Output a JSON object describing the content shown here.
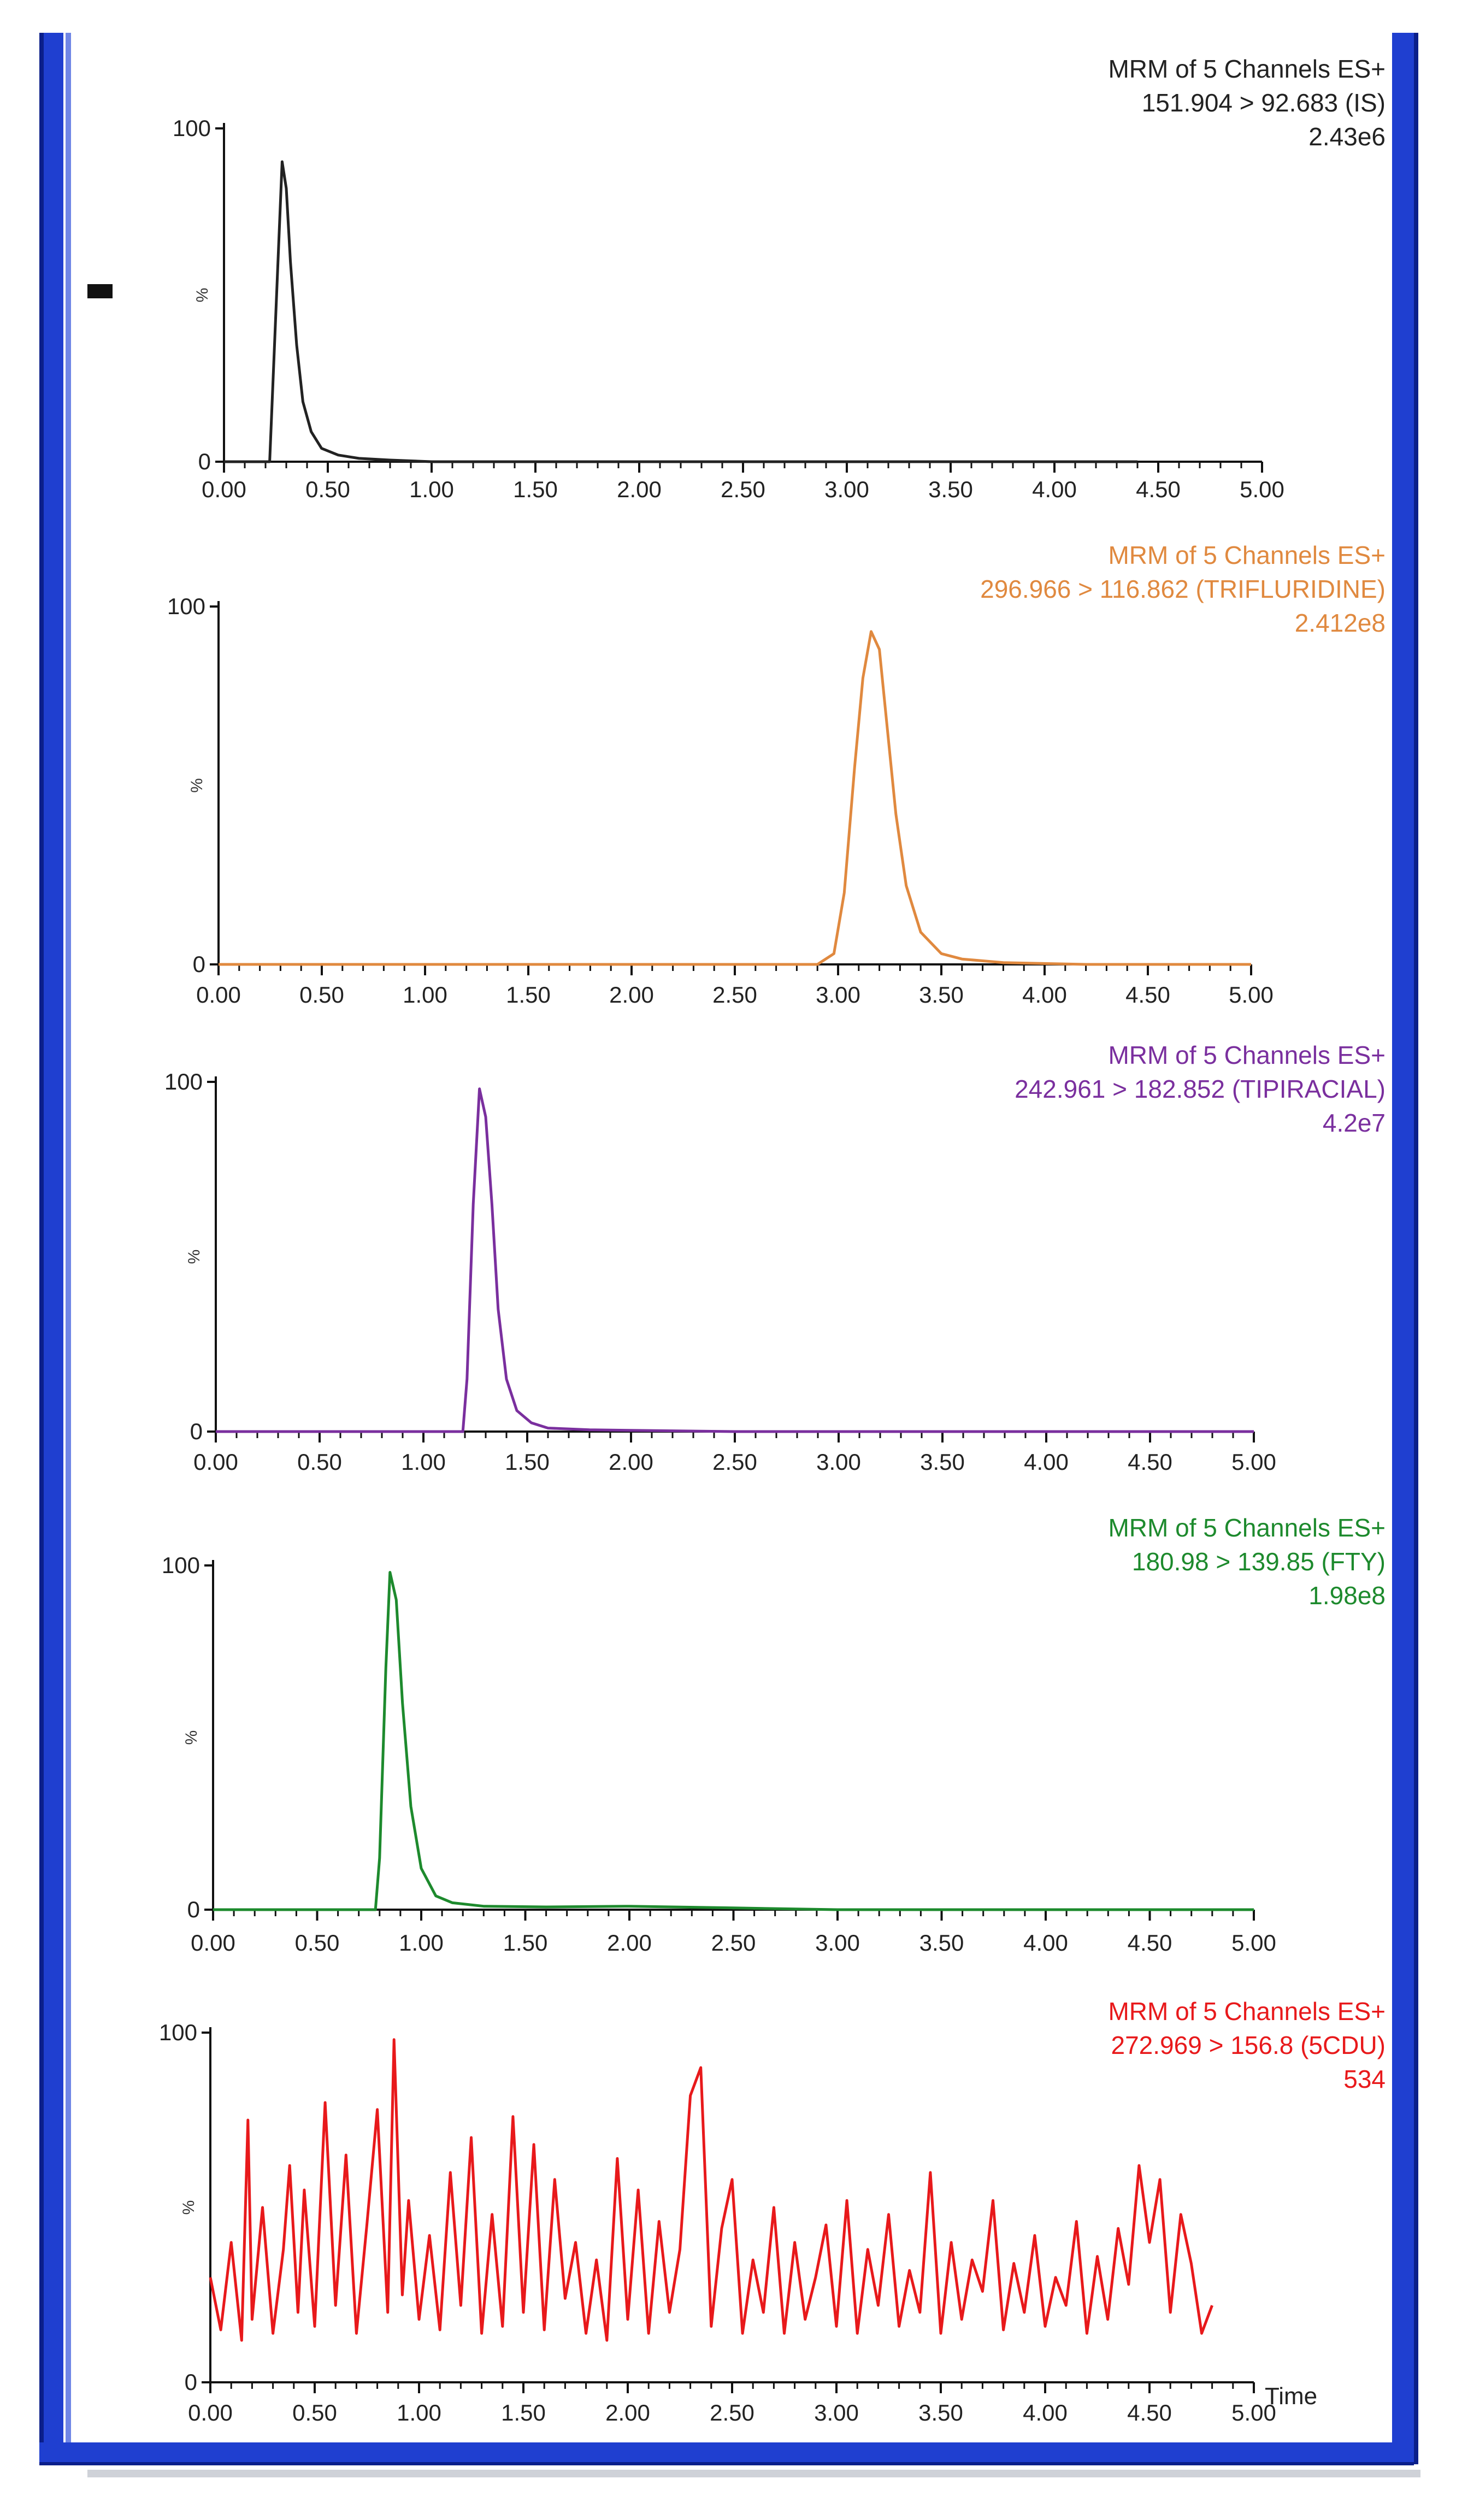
{
  "chart_data": [
    {
      "type": "line",
      "title_lines": [
        "MRM of 5 Channels ES+",
        "151.904 > 92.683 (IS)",
        "2.43e6"
      ],
      "color": "#222222",
      "xlabel": "",
      "ylabel": "%",
      "ylim": [
        0,
        100
      ],
      "xlim": [
        0,
        5
      ],
      "x_ticks": [
        "0.00",
        "0.50",
        "1.00",
        "1.50",
        "2.00",
        "2.50",
        "3.00",
        "3.50",
        "4.00",
        "4.50",
        "5.00"
      ],
      "y_ticks": [
        "0",
        "100"
      ],
      "trace_end": 4.4,
      "series": [
        {
          "x": [
            0.0,
            0.2,
            0.22,
            0.25,
            0.28,
            0.3,
            0.32,
            0.35,
            0.38,
            0.42,
            0.47,
            0.55,
            0.65,
            0.8,
            1.0,
            1.5,
            2.5,
            3.5,
            4.4
          ],
          "y": [
            0,
            0,
            0,
            45,
            90,
            82,
            60,
            35,
            18,
            9,
            4,
            2,
            1,
            0.5,
            0,
            0,
            0,
            0,
            0
          ]
        }
      ]
    },
    {
      "type": "line",
      "title_lines": [
        "MRM of 5 Channels ES+",
        "296.966 > 116.862 (TRIFLURIDINE)",
        "2.412e8"
      ],
      "color": "#e0893f",
      "xlabel": "",
      "ylabel": "%",
      "ylim": [
        0,
        100
      ],
      "xlim": [
        0,
        5
      ],
      "x_ticks": [
        "0.00",
        "0.50",
        "1.00",
        "1.50",
        "2.00",
        "2.50",
        "3.00",
        "3.50",
        "4.00",
        "4.50",
        "5.00"
      ],
      "y_ticks": [
        "0",
        "100"
      ],
      "series": [
        {
          "x": [
            0.0,
            1.0,
            2.0,
            2.9,
            2.98,
            3.03,
            3.08,
            3.12,
            3.16,
            3.2,
            3.24,
            3.28,
            3.33,
            3.4,
            3.5,
            3.6,
            3.8,
            4.2,
            5.0
          ],
          "y": [
            0,
            0,
            0,
            0,
            3,
            20,
            55,
            80,
            93,
            88,
            65,
            42,
            22,
            9,
            3,
            1.5,
            0.5,
            0,
            0
          ]
        }
      ]
    },
    {
      "type": "line",
      "title_lines": [
        "MRM of 5 Channels ES+",
        "242.961 > 182.852 (TIPIRACIAL)",
        "4.2e7"
      ],
      "color": "#7a2f9e",
      "xlabel": "",
      "ylabel": "%",
      "ylim": [
        0,
        100
      ],
      "xlim": [
        0,
        5
      ],
      "x_ticks": [
        "0.00",
        "0.50",
        "1.00",
        "1.50",
        "2.00",
        "2.50",
        "3.00",
        "3.50",
        "4.00",
        "4.50",
        "5.00"
      ],
      "y_ticks": [
        "0",
        "100"
      ],
      "series": [
        {
          "x": [
            0.0,
            1.0,
            1.19,
            1.21,
            1.24,
            1.27,
            1.3,
            1.33,
            1.36,
            1.4,
            1.45,
            1.52,
            1.6,
            1.8,
            2.5,
            5.0
          ],
          "y": [
            0,
            0,
            0,
            15,
            65,
            98,
            90,
            65,
            35,
            15,
            6,
            2.5,
            1,
            0.5,
            0,
            0
          ]
        }
      ]
    },
    {
      "type": "line",
      "title_lines": [
        "MRM of 5 Channels ES+",
        "180.98 > 139.85 (FTY)",
        "1.98e8"
      ],
      "color": "#1d8a2d",
      "xlabel": "",
      "ylabel": "%",
      "ylim": [
        0,
        100
      ],
      "xlim": [
        0,
        5
      ],
      "x_ticks": [
        "0.00",
        "0.50",
        "1.00",
        "1.50",
        "2.00",
        "2.50",
        "3.00",
        "3.50",
        "4.00",
        "4.50",
        "5.00"
      ],
      "y_ticks": [
        "0",
        "100"
      ],
      "series": [
        {
          "x": [
            0.0,
            0.7,
            0.78,
            0.8,
            0.83,
            0.85,
            0.88,
            0.91,
            0.95,
            1.0,
            1.07,
            1.15,
            1.3,
            1.6,
            2.0,
            2.5,
            3.0,
            5.0
          ],
          "y": [
            0,
            0,
            0,
            15,
            70,
            98,
            90,
            60,
            30,
            12,
            4,
            2,
            1,
            0.8,
            1,
            0.5,
            0,
            0
          ]
        }
      ]
    },
    {
      "type": "line",
      "title_lines": [
        "MRM of 5 Channels ES+",
        "272.969 > 156.8 (5CDU)",
        "534"
      ],
      "color": "#e8191b",
      "xlabel": "Time",
      "ylabel": "%",
      "ylim": [
        0,
        100
      ],
      "xlim": [
        0,
        5
      ],
      "x_ticks": [
        "0.00",
        "0.50",
        "1.00",
        "1.50",
        "2.00",
        "2.50",
        "3.00",
        "3.50",
        "4.00",
        "4.50",
        "5.00"
      ],
      "y_ticks": [
        "0",
        "100"
      ],
      "noise_baseline": 15,
      "series": [
        {
          "x": [
            0.0,
            0.05,
            0.1,
            0.15,
            0.18,
            0.2,
            0.25,
            0.3,
            0.35,
            0.38,
            0.42,
            0.45,
            0.5,
            0.55,
            0.6,
            0.65,
            0.7,
            0.75,
            0.8,
            0.85,
            0.88,
            0.92,
            0.95,
            1.0,
            1.05,
            1.1,
            1.15,
            1.2,
            1.25,
            1.3,
            1.35,
            1.4,
            1.45,
            1.5,
            1.55,
            1.6,
            1.65,
            1.7,
            1.75,
            1.8,
            1.85,
            1.9,
            1.95,
            2.0,
            2.05,
            2.1,
            2.15,
            2.2,
            2.25,
            2.3,
            2.35,
            2.4,
            2.45,
            2.5,
            2.55,
            2.6,
            2.65,
            2.7,
            2.75,
            2.8,
            2.85,
            2.9,
            2.95,
            3.0,
            3.05,
            3.1,
            3.15,
            3.2,
            3.25,
            3.3,
            3.35,
            3.4,
            3.45,
            3.5,
            3.55,
            3.6,
            3.65,
            3.7,
            3.75,
            3.8,
            3.85,
            3.9,
            3.95,
            4.0,
            4.05,
            4.1,
            4.15,
            4.2,
            4.25,
            4.3,
            4.35,
            4.4,
            4.45,
            4.5,
            4.55,
            4.6,
            4.65,
            4.7,
            4.75,
            4.8
          ],
          "y": [
            30,
            15,
            40,
            12,
            75,
            18,
            50,
            14,
            38,
            62,
            20,
            55,
            16,
            80,
            22,
            65,
            14,
            45,
            78,
            20,
            98,
            25,
            52,
            18,
            42,
            15,
            60,
            22,
            70,
            14,
            48,
            16,
            76,
            20,
            68,
            15,
            58,
            24,
            40,
            14,
            35,
            12,
            64,
            18,
            55,
            14,
            46,
            20,
            38,
            82,
            90,
            16,
            44,
            58,
            14,
            35,
            20,
            50,
            14,
            40,
            18,
            30,
            45,
            16,
            52,
            14,
            38,
            22,
            48,
            16,
            32,
            20,
            60,
            14,
            40,
            18,
            35,
            26,
            52,
            15,
            34,
            20,
            42,
            16,
            30,
            22,
            46,
            14,
            36,
            18,
            44,
            28,
            62,
            40,
            58,
            20,
            48,
            34,
            14,
            22
          ]
        }
      ]
    }
  ]
}
